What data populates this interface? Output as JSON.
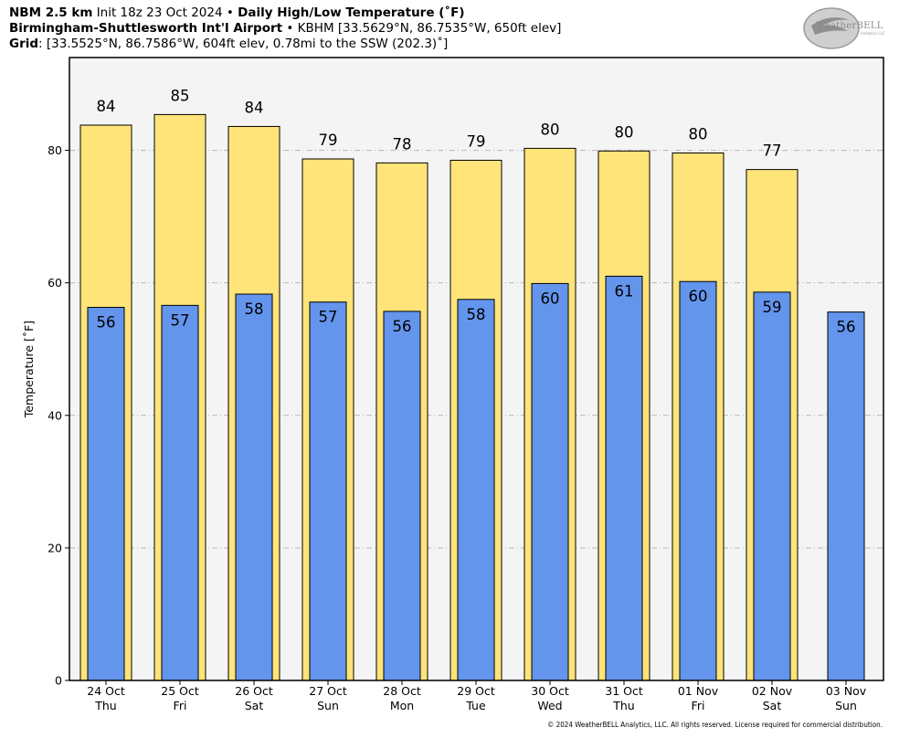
{
  "header": {
    "line1": {
      "model": "NBM 2.5 km",
      "init": "Init 18z 23 Oct 2024",
      "sep": "•",
      "title": "Daily High/Low Temperature (˚F)"
    },
    "line2": {
      "station": "Birmingham-Shuttlesworth Int'l Airport",
      "sep": "•",
      "info": "KBHM [33.5629°N, 86.7535°W, 650ft elev]"
    },
    "line3": {
      "label": "Grid",
      "info": ": [33.5525°N, 86.7586°W, 604ft elev, 0.78mi to the SSW (202.3)˚]"
    }
  },
  "logo": {
    "name": "WeatherBELL",
    "subtext": "Analytics LLC",
    "icon": "weatherbell-logo-icon"
  },
  "copyright": "© 2024 WeatherBELL Analytics, LLC. All rights reserved. License required for commercial distribution.",
  "chart_data": {
    "type": "bar",
    "ylabel": "Temperature [˚F]",
    "ylim": [
      0,
      94
    ],
    "yticks": [
      0,
      20,
      40,
      60,
      80
    ],
    "grid": true,
    "categories": [
      {
        "date": "24 Oct",
        "day": "Thu"
      },
      {
        "date": "25 Oct",
        "day": "Fri"
      },
      {
        "date": "26 Oct",
        "day": "Sat"
      },
      {
        "date": "27 Oct",
        "day": "Sun"
      },
      {
        "date": "28 Oct",
        "day": "Mon"
      },
      {
        "date": "29 Oct",
        "day": "Tue"
      },
      {
        "date": "30 Oct",
        "day": "Wed"
      },
      {
        "date": "31 Oct",
        "day": "Thu"
      },
      {
        "date": "01 Nov",
        "day": "Fri"
      },
      {
        "date": "02 Nov",
        "day": "Sat"
      },
      {
        "date": "03 Nov",
        "day": "Sun"
      }
    ],
    "series": [
      {
        "key": "high",
        "color": "#ffe47a",
        "values": [
          83.8,
          85.4,
          83.6,
          78.7,
          78.1,
          78.5,
          80.3,
          79.9,
          79.6,
          77.1,
          null
        ],
        "labels": [
          "84",
          "85",
          "84",
          "79",
          "78",
          "79",
          "80",
          "80",
          "80",
          "77",
          null
        ]
      },
      {
        "key": "low",
        "color": "#6495ed",
        "values": [
          56.3,
          56.6,
          58.3,
          57.1,
          55.7,
          57.5,
          59.9,
          61.0,
          60.2,
          58.6,
          55.6
        ],
        "labels": [
          "56",
          "57",
          "58",
          "57",
          "56",
          "58",
          "60",
          "61",
          "60",
          "59",
          "56"
        ]
      }
    ],
    "colors": {
      "plot_bg": "#f4f4f4",
      "grid": "#b9b9b9",
      "border": "#000000"
    }
  }
}
